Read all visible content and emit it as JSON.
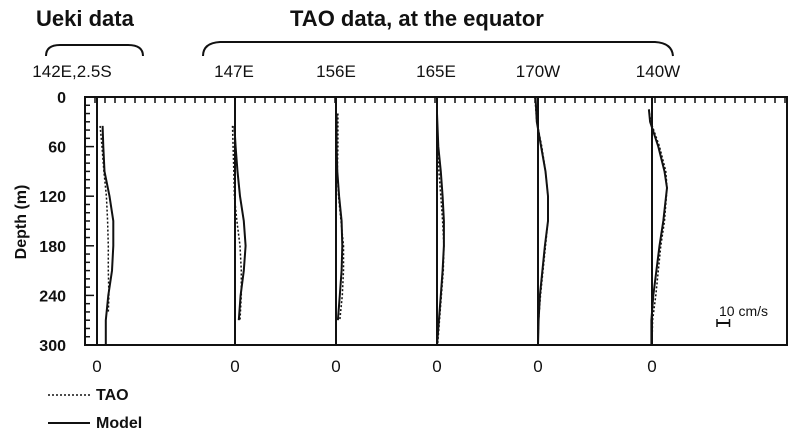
{
  "headers": {
    "ueki": "Ueki data",
    "tao": "TAO data, at the equator"
  },
  "chart_data": {
    "type": "line",
    "ylabel": "Depth (m)",
    "yticks": [
      0,
      60,
      120,
      180,
      240,
      300
    ],
    "ylim": [
      0,
      300
    ],
    "y_inverted": true,
    "scale_bar_label": "10 cm/s",
    "scale_bar_cm_s": 10,
    "legend": {
      "tao": "TAO",
      "model": "Model"
    },
    "panels": [
      {
        "site": "142E,2.5S",
        "zero_label": "0",
        "series": [
          {
            "name": "TAO",
            "depth": [
              35,
              60,
              90,
              120,
              150,
              180,
              210,
              240,
              260
            ],
            "u": [
              2.5,
              4,
              5.5,
              7.5,
              8.5,
              9,
              9,
              9.5,
              9
            ]
          },
          {
            "name": "Model",
            "depth": [
              35,
              60,
              90,
              120,
              150,
              180,
              210,
              240,
              270,
              300
            ],
            "u": [
              4.5,
              5,
              6,
              10,
              13,
              13,
              12,
              9,
              7,
              7
            ]
          }
        ]
      },
      {
        "site": "147E",
        "zero_label": "0",
        "series": [
          {
            "name": "TAO",
            "depth": [
              35,
              60,
              90,
              120,
              150,
              180,
              210,
              240,
              270
            ],
            "u": [
              -2,
              -1.5,
              -1,
              -0.5,
              1.5,
              4,
              5,
              5,
              4
            ]
          },
          {
            "name": "Model",
            "depth": [
              35,
              60,
              90,
              120,
              150,
              180,
              210,
              240,
              270
            ],
            "u": [
              -0.5,
              0.5,
              2,
              4,
              7,
              8.5,
              7,
              4.5,
              3
            ]
          }
        ]
      },
      {
        "site": "156E",
        "zero_label": "0",
        "series": [
          {
            "name": "TAO",
            "depth": [
              20,
              60,
              90,
              120,
              150,
              180,
              210,
              240,
              270
            ],
            "u": [
              1.5,
              1.5,
              1,
              2,
              4,
              6,
              6,
              5,
              3
            ]
          },
          {
            "name": "Model",
            "depth": [
              20,
              60,
              90,
              120,
              150,
              180,
              210,
              240,
              270
            ],
            "u": [
              0.5,
              0.5,
              1,
              2.5,
              4.5,
              5,
              4.5,
              3,
              1.5
            ]
          }
        ]
      },
      {
        "site": "165E",
        "zero_label": "0",
        "series": [
          {
            "name": "TAO",
            "depth": [
              20,
              60,
              90,
              120,
              150,
              180,
              210,
              240,
              270,
              300
            ],
            "u": [
              0,
              0.5,
              1.5,
              3,
              4.5,
              5.5,
              5,
              3.5,
              2,
              0.5
            ]
          },
          {
            "name": "Model",
            "depth": [
              20,
              60,
              90,
              120,
              150,
              180,
              210,
              240,
              270,
              300
            ],
            "u": [
              0,
              1,
              3,
              4.5,
              5.5,
              5.5,
              4.5,
              3,
              1.5,
              0
            ]
          }
        ]
      },
      {
        "site": "170W",
        "zero_label": "0",
        "series": [
          {
            "name": "TAO",
            "depth": [
              0,
              30,
              60,
              90,
              120,
              150,
              180,
              210,
              240,
              270,
              300
            ],
            "u": [
              -2.5,
              -1,
              3,
              6,
              8,
              8,
              6,
              4,
              2,
              0.5,
              0
            ]
          },
          {
            "name": "Model",
            "depth": [
              0,
              30,
              60,
              90,
              120,
              150,
              180,
              210,
              240,
              270,
              300
            ],
            "u": [
              -2,
              -1,
              2.5,
              6,
              8,
              8,
              5.5,
              3.5,
              1.5,
              0.5,
              0
            ]
          }
        ]
      },
      {
        "site": "140W",
        "zero_label": "0",
        "series": [
          {
            "name": "TAO",
            "depth": [
              15,
              30,
              60,
              90,
              110,
              150,
              180,
              210,
              240,
              270,
              300
            ],
            "u": [
              -2.5,
              -1,
              6,
              11,
              12,
              10,
              7,
              5,
              3,
              0.5,
              0
            ]
          },
          {
            "name": "Model",
            "depth": [
              15,
              30,
              60,
              90,
              110,
              150,
              180,
              210,
              240,
              270,
              300
            ],
            "u": [
              -2.5,
              -1.5,
              5,
              10,
              12,
              9,
              6,
              3.5,
              1,
              -0.5,
              -0.5
            ]
          }
        ]
      }
    ]
  }
}
